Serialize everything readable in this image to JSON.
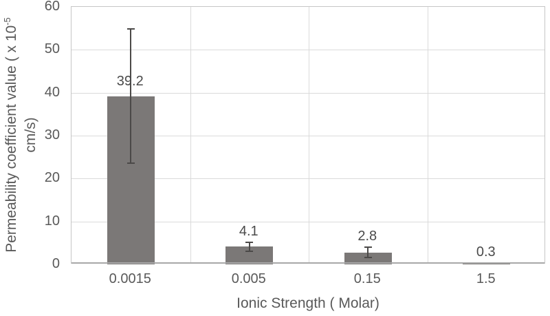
{
  "chart_data": {
    "type": "bar",
    "categories": [
      "0.0015",
      "0.005",
      "0.15",
      "1.5"
    ],
    "values": [
      39.2,
      4.1,
      2.8,
      0.3
    ],
    "errors": [
      15.8,
      1.2,
      1.3,
      0.2
    ],
    "data_labels": [
      "39.2",
      "4.1",
      "2.8",
      "0.3"
    ],
    "xlabel": "Ionic Strength ( Molar)",
    "ylabel_line1_main": "Permeability coefficient value ( x 10",
    "ylabel_superscript": "-5",
    "ylabel_line2": "cm/s)",
    "ylim": [
      0,
      60
    ],
    "yticks": [
      0,
      10,
      20,
      30,
      40,
      50,
      60
    ],
    "grid": true,
    "legend": "none",
    "colors": {
      "bar_fill": "#7b7877",
      "error_bar": "#4b4948",
      "gridline": "#dadada",
      "plot_border": "#c6c6c6",
      "axis_line": "#a8a8a8",
      "tick_text": "#595959",
      "data_label_text": "#4a4a4a"
    }
  }
}
